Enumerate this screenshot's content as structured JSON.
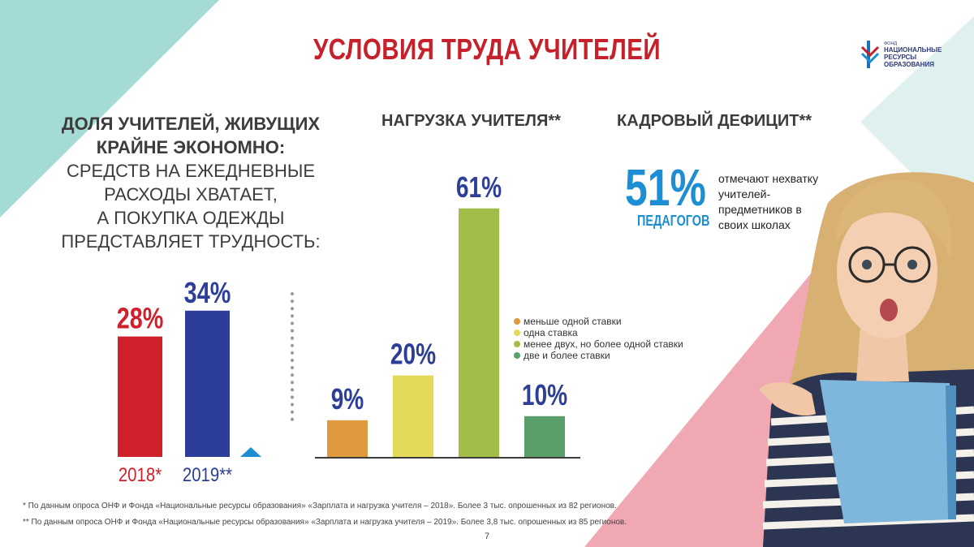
{
  "title": "УСЛОВИЯ ТРУДА УЧИТЕЛЕЙ",
  "logo": {
    "line1": "ФОНД",
    "line2": "НАЦИОНАЛЬНЫЕ",
    "line3": "РЕСУРСЫ",
    "line4": "ОБРАЗОВАНИЯ"
  },
  "left_section": {
    "heading_bold_1": "ДОЛЯ УЧИТЕЛЕЙ, ЖИВУЩИХ",
    "heading_bold_2": "КРАЙНЕ ЭКОНОМНО:",
    "line1": "СРЕДСТВ НА ЕЖЕДНЕВНЫЕ",
    "line2": "РАСХОДЫ ХВАТАЕТ,",
    "line3": "А ПОКУПКА ОДЕЖДЫ",
    "line4": "ПРЕДСТАВЛЯЕТ ТРУДНОСТЬ:"
  },
  "mid_section": {
    "heading": "НАГРУЗКА УЧИТЕЛЯ**"
  },
  "right_section": {
    "heading": "КАДРОВЫЙ ДЕФИЦИТ**",
    "big_value": "51%",
    "big_label": "ПЕДАГОГОВ",
    "note": "отмечают нехватку учителей-предметников в своих школах"
  },
  "chart_data": [
    {
      "type": "bar",
      "categories": [
        "2018*",
        "2019**"
      ],
      "values": [
        28,
        34
      ],
      "labels": [
        "28%",
        "34%"
      ],
      "colors": [
        "#d0202c",
        "#2c3e97"
      ]
    },
    {
      "type": "bar",
      "categories": [
        "меньше одной ставки",
        "одна ставка",
        "менее двух, но более одной ставки",
        "две и более ставки"
      ],
      "values": [
        9,
        20,
        61,
        10
      ],
      "labels": [
        "9%",
        "20%",
        "61%",
        "10%"
      ],
      "colors": [
        "#e09a3e",
        "#e3da5a",
        "#a2bd48",
        "#5a9e6a"
      ],
      "label_colors": [
        "#2c3e97",
        "#2c3e97",
        "#2c3e97",
        "#2c3e97"
      ],
      "legend": [
        "меньше одной ставки",
        "одна ставка",
        "менее двух, но более одной ставки",
        "две и более ставки"
      ]
    }
  ],
  "footnotes": {
    "f1": "* По данным опроса ОНФ и Фонда «Национальные ресурсы образования» «Зарплата и нагрузка учителя – 2018». Более 3 тыс. опрошенных из 82 регионов.",
    "f2": "** По данным опроса ОНФ и Фонда «Национальные ресурсы образования» «Зарплата и нагрузка учителя – 2019». Более 3,8 тыс. опрошенных из 85 регионов."
  },
  "page_number": "7",
  "colors": {
    "title": "#c6202a",
    "accent_blue": "#1d8ed3",
    "navy": "#2c3e97",
    "teal_bg": "#9fd9d2",
    "pink_bg": "#ee9aa7"
  }
}
